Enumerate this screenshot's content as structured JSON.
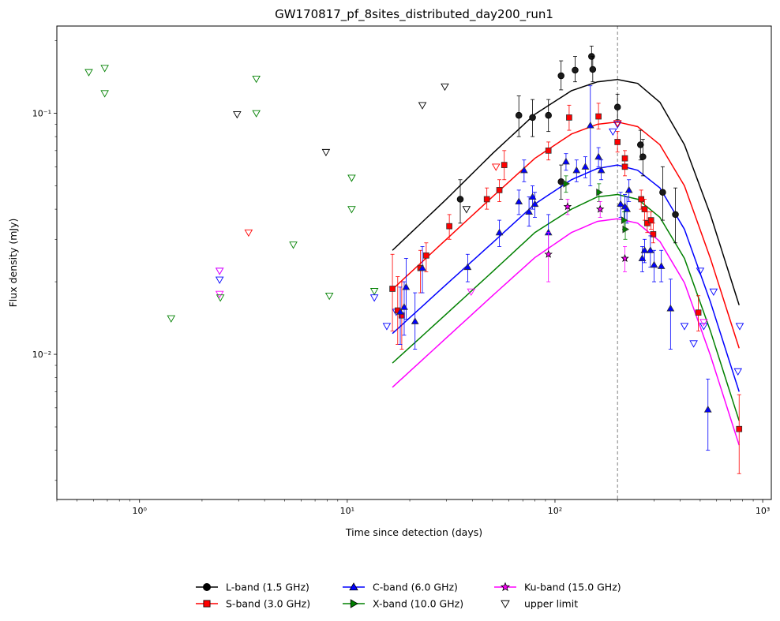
{
  "chart_data": {
    "type": "scatter",
    "title": "GW170817_pf_8sites_distributed_day200_run1",
    "xlabel": "Time since detection (days)",
    "ylabel": "Flux density (mJy)",
    "xscale": "log",
    "yscale": "log",
    "xlim": [
      0.4,
      1100
    ],
    "ylim": [
      0.0025,
      0.23
    ],
    "x_tick_labels": [
      "10⁰",
      "10¹",
      "10²",
      "10³"
    ],
    "y_tick_labels": [
      "10⁻²",
      "10⁻¹"
    ],
    "vline_x": 200,
    "legend": {
      "placement": "bottom-center, 3 columns",
      "entries": [
        {
          "label": "L-band (1.5 GHz)",
          "color": "#000000",
          "marker": "circle"
        },
        {
          "label": "S-band (3.0 GHz)",
          "color": "#ff0000",
          "marker": "square"
        },
        {
          "label": "C-band (6.0 GHz)",
          "color": "#0000ff",
          "marker": "triangle-up"
        },
        {
          "label": "X-band (10.0 GHz)",
          "color": "#008000",
          "marker": "triangle-right"
        },
        {
          "label": "Ku-band (15.0 GHz)",
          "color": "#ff00ff",
          "marker": "star"
        },
        {
          "label": "upper limit",
          "color": "#000000",
          "marker": "triangle-down-open"
        }
      ]
    },
    "model_curves": [
      {
        "band": "L",
        "color": "#000000",
        "x": [
          16.5,
          30,
          50,
          80,
          120,
          160,
          200,
          250,
          320,
          420,
          560,
          770
        ],
        "y": [
          0.027,
          0.044,
          0.068,
          0.099,
          0.124,
          0.135,
          0.138,
          0.133,
          0.111,
          0.074,
          0.038,
          0.016
        ]
      },
      {
        "band": "S",
        "color": "#ff0000",
        "x": [
          16.5,
          30,
          50,
          80,
          120,
          160,
          200,
          250,
          320,
          420,
          560,
          770
        ],
        "y": [
          0.0186,
          0.03,
          0.045,
          0.065,
          0.082,
          0.09,
          0.092,
          0.088,
          0.074,
          0.05,
          0.025,
          0.0106
        ]
      },
      {
        "band": "C",
        "color": "#0000ff",
        "x": [
          16.5,
          30,
          50,
          80,
          120,
          160,
          200,
          250,
          320,
          420,
          560,
          770
        ],
        "y": [
          0.0122,
          0.0195,
          0.029,
          0.042,
          0.053,
          0.059,
          0.061,
          0.058,
          0.049,
          0.033,
          0.0165,
          0.007
        ]
      },
      {
        "band": "X",
        "color": "#008000",
        "x": [
          16.5,
          30,
          50,
          80,
          120,
          160,
          200,
          250,
          320,
          420,
          560,
          770
        ],
        "y": [
          0.0092,
          0.0147,
          0.022,
          0.032,
          0.04,
          0.045,
          0.046,
          0.044,
          0.037,
          0.025,
          0.0125,
          0.0053
        ]
      },
      {
        "band": "Ku",
        "color": "#ff00ff",
        "x": [
          16.5,
          30,
          50,
          80,
          120,
          160,
          200,
          250,
          320,
          420,
          560,
          770
        ],
        "y": [
          0.0073,
          0.0117,
          0.0175,
          0.0252,
          0.032,
          0.0356,
          0.0365,
          0.035,
          0.0294,
          0.0198,
          0.0099,
          0.0042
        ]
      }
    ],
    "detections": [
      {
        "band": "L",
        "x": 35,
        "y": 0.044,
        "lo": 0.035,
        "hi": 0.053
      },
      {
        "band": "L",
        "x": 67,
        "y": 0.098,
        "lo": 0.08,
        "hi": 0.118
      },
      {
        "band": "L",
        "x": 78,
        "y": 0.096,
        "lo": 0.08,
        "hi": 0.114
      },
      {
        "band": "L",
        "x": 93,
        "y": 0.098,
        "lo": 0.084,
        "hi": 0.114
      },
      {
        "band": "L",
        "x": 107,
        "y": 0.143,
        "lo": 0.125,
        "hi": 0.165
      },
      {
        "band": "L",
        "x": 107,
        "y": 0.052,
        "lo": 0.044,
        "hi": 0.061
      },
      {
        "band": "L",
        "x": 125,
        "y": 0.151,
        "lo": 0.135,
        "hi": 0.172
      },
      {
        "band": "L",
        "x": 150,
        "y": 0.172,
        "lo": 0.153,
        "hi": 0.19
      },
      {
        "band": "L",
        "x": 152,
        "y": 0.152,
        "lo": 0.135,
        "hi": 0.172
      },
      {
        "band": "L",
        "x": 200,
        "y": 0.106,
        "lo": 0.094,
        "hi": 0.12
      },
      {
        "band": "L",
        "x": 258,
        "y": 0.074,
        "lo": 0.064,
        "hi": 0.085
      },
      {
        "band": "L",
        "x": 265,
        "y": 0.066,
        "lo": 0.055,
        "hi": 0.078
      },
      {
        "band": "L",
        "x": 330,
        "y": 0.047,
        "lo": 0.036,
        "hi": 0.06
      },
      {
        "band": "L",
        "x": 380,
        "y": 0.038,
        "lo": 0.029,
        "hi": 0.049
      },
      {
        "band": "S",
        "x": 16.5,
        "y": 0.0187,
        "lo": 0.0125,
        "hi": 0.026
      },
      {
        "band": "S",
        "x": 17.5,
        "y": 0.0152,
        "lo": 0.011,
        "hi": 0.021
      },
      {
        "band": "S",
        "x": 18.3,
        "y": 0.0145,
        "lo": 0.0105,
        "hi": 0.02
      },
      {
        "band": "S",
        "x": 22.5,
        "y": 0.0228,
        "lo": 0.018,
        "hi": 0.027
      },
      {
        "band": "S",
        "x": 24,
        "y": 0.0257,
        "lo": 0.022,
        "hi": 0.029
      },
      {
        "band": "S",
        "x": 31,
        "y": 0.034,
        "lo": 0.03,
        "hi": 0.038
      },
      {
        "band": "S",
        "x": 47,
        "y": 0.044,
        "lo": 0.04,
        "hi": 0.049
      },
      {
        "band": "S",
        "x": 54,
        "y": 0.048,
        "lo": 0.043,
        "hi": 0.053
      },
      {
        "band": "S",
        "x": 57,
        "y": 0.061,
        "lo": 0.053,
        "hi": 0.07
      },
      {
        "band": "S",
        "x": 93,
        "y": 0.07,
        "lo": 0.064,
        "hi": 0.076
      },
      {
        "band": "S",
        "x": 117,
        "y": 0.096,
        "lo": 0.085,
        "hi": 0.108
      },
      {
        "band": "S",
        "x": 162,
        "y": 0.097,
        "lo": 0.086,
        "hi": 0.11
      },
      {
        "band": "S",
        "x": 200,
        "y": 0.076,
        "lo": 0.069,
        "hi": 0.084
      },
      {
        "band": "S",
        "x": 217,
        "y": 0.065,
        "lo": 0.06,
        "hi": 0.07
      },
      {
        "band": "S",
        "x": 217,
        "y": 0.06,
        "lo": 0.055,
        "hi": 0.066
      },
      {
        "band": "S",
        "x": 260,
        "y": 0.044,
        "lo": 0.04,
        "hi": 0.048
      },
      {
        "band": "S",
        "x": 270,
        "y": 0.04,
        "lo": 0.036,
        "hi": 0.044
      },
      {
        "band": "S",
        "x": 278,
        "y": 0.035,
        "lo": 0.032,
        "hi": 0.039
      },
      {
        "band": "S",
        "x": 290,
        "y": 0.036,
        "lo": 0.033,
        "hi": 0.039
      },
      {
        "band": "S",
        "x": 297,
        "y": 0.0315,
        "lo": 0.029,
        "hi": 0.035
      },
      {
        "band": "S",
        "x": 490,
        "y": 0.0149,
        "lo": 0.0125,
        "hi": 0.0175
      },
      {
        "band": "S",
        "x": 770,
        "y": 0.0049,
        "lo": 0.0032,
        "hi": 0.0068
      },
      {
        "band": "C",
        "x": 18.0,
        "y": 0.015,
        "lo": 0.011,
        "hi": 0.019
      },
      {
        "band": "C",
        "x": 18.8,
        "y": 0.0157,
        "lo": 0.012,
        "hi": 0.02
      },
      {
        "band": "C",
        "x": 19.2,
        "y": 0.019,
        "lo": 0.014,
        "hi": 0.025
      },
      {
        "band": "C",
        "x": 21.2,
        "y": 0.0137,
        "lo": 0.0105,
        "hi": 0.018
      },
      {
        "band": "C",
        "x": 23.0,
        "y": 0.0228,
        "lo": 0.018,
        "hi": 0.028
      },
      {
        "band": "C",
        "x": 38,
        "y": 0.023,
        "lo": 0.02,
        "hi": 0.026
      },
      {
        "band": "C",
        "x": 54,
        "y": 0.032,
        "lo": 0.028,
        "hi": 0.036
      },
      {
        "band": "C",
        "x": 67,
        "y": 0.043,
        "lo": 0.038,
        "hi": 0.048
      },
      {
        "band": "C",
        "x": 71,
        "y": 0.058,
        "lo": 0.052,
        "hi": 0.064
      },
      {
        "band": "C",
        "x": 75,
        "y": 0.039,
        "lo": 0.034,
        "hi": 0.045
      },
      {
        "band": "C",
        "x": 78,
        "y": 0.045,
        "lo": 0.04,
        "hi": 0.05
      },
      {
        "band": "C",
        "x": 80,
        "y": 0.042,
        "lo": 0.037,
        "hi": 0.047
      },
      {
        "band": "C",
        "x": 93,
        "y": 0.032,
        "lo": 0.026,
        "hi": 0.038
      },
      {
        "band": "C",
        "x": 113,
        "y": 0.063,
        "lo": 0.058,
        "hi": 0.068
      },
      {
        "band": "C",
        "x": 127,
        "y": 0.058,
        "lo": 0.052,
        "hi": 0.064
      },
      {
        "band": "C",
        "x": 148,
        "y": 0.089,
        "lo": 0.05,
        "hi": 0.13
      },
      {
        "band": "C",
        "x": 140,
        "y": 0.06,
        "lo": 0.054,
        "hi": 0.066
      },
      {
        "band": "C",
        "x": 162,
        "y": 0.066,
        "lo": 0.06,
        "hi": 0.072
      },
      {
        "band": "C",
        "x": 167,
        "y": 0.058,
        "lo": 0.053,
        "hi": 0.064
      },
      {
        "band": "C",
        "x": 207,
        "y": 0.042,
        "lo": 0.037,
        "hi": 0.047
      },
      {
        "band": "C",
        "x": 217,
        "y": 0.041,
        "lo": 0.036,
        "hi": 0.046
      },
      {
        "band": "C",
        "x": 222,
        "y": 0.04,
        "lo": 0.035,
        "hi": 0.045
      },
      {
        "band": "C",
        "x": 227,
        "y": 0.048,
        "lo": 0.043,
        "hi": 0.053
      },
      {
        "band": "C",
        "x": 263,
        "y": 0.025,
        "lo": 0.022,
        "hi": 0.028
      },
      {
        "band": "C",
        "x": 270,
        "y": 0.027,
        "lo": 0.024,
        "hi": 0.03
      },
      {
        "band": "C",
        "x": 288,
        "y": 0.027,
        "lo": 0.023,
        "hi": 0.031
      },
      {
        "band": "C",
        "x": 300,
        "y": 0.0235,
        "lo": 0.02,
        "hi": 0.027
      },
      {
        "band": "C",
        "x": 325,
        "y": 0.0232,
        "lo": 0.02,
        "hi": 0.027
      },
      {
        "band": "C",
        "x": 360,
        "y": 0.0155,
        "lo": 0.0105,
        "hi": 0.0205
      },
      {
        "band": "C",
        "x": 545,
        "y": 0.0059,
        "lo": 0.004,
        "hi": 0.0079
      },
      {
        "band": "X",
        "x": 113,
        "y": 0.051,
        "lo": 0.047,
        "hi": 0.055
      },
      {
        "band": "X",
        "x": 163,
        "y": 0.047,
        "lo": 0.043,
        "hi": 0.051
      },
      {
        "band": "X",
        "x": 215,
        "y": 0.036,
        "lo": 0.033,
        "hi": 0.039
      },
      {
        "band": "X",
        "x": 218,
        "y": 0.033,
        "lo": 0.03,
        "hi": 0.036
      },
      {
        "band": "Ku",
        "x": 93,
        "y": 0.026,
        "lo": 0.02,
        "hi": 0.032
      },
      {
        "band": "Ku",
        "x": 115,
        "y": 0.041,
        "lo": 0.038,
        "hi": 0.044
      },
      {
        "band": "Ku",
        "x": 165,
        "y": 0.04,
        "lo": 0.037,
        "hi": 0.043
      },
      {
        "band": "Ku",
        "x": 217,
        "y": 0.025,
        "lo": 0.022,
        "hi": 0.028
      }
    ],
    "upper_limits": [
      {
        "band": "X",
        "x": 0.57,
        "y": 0.148
      },
      {
        "band": "X",
        "x": 0.68,
        "y": 0.154
      },
      {
        "band": "X",
        "x": 0.68,
        "y": 0.121
      },
      {
        "band": "X",
        "x": 1.42,
        "y": 0.0141
      },
      {
        "band": "C",
        "x": 2.43,
        "y": 0.0222
      },
      {
        "band": "C",
        "x": 2.43,
        "y": 0.0204
      },
      {
        "band": "Ku",
        "x": 2.43,
        "y": 0.0222
      },
      {
        "band": "Ku",
        "x": 2.43,
        "y": 0.0178
      },
      {
        "band": "X",
        "x": 2.45,
        "y": 0.0172
      },
      {
        "band": "L",
        "x": 2.95,
        "y": 0.099
      },
      {
        "band": "S",
        "x": 3.35,
        "y": 0.032
      },
      {
        "band": "X",
        "x": 3.65,
        "y": 0.139
      },
      {
        "band": "X",
        "x": 3.65,
        "y": 0.1
      },
      {
        "band": "X",
        "x": 5.5,
        "y": 0.0285
      },
      {
        "band": "L",
        "x": 7.9,
        "y": 0.069
      },
      {
        "band": "X",
        "x": 8.2,
        "y": 0.0175
      },
      {
        "band": "X",
        "x": 10.5,
        "y": 0.054
      },
      {
        "band": "X",
        "x": 10.5,
        "y": 0.04
      },
      {
        "band": "X",
        "x": 13.5,
        "y": 0.0183
      },
      {
        "band": "C",
        "x": 13.5,
        "y": 0.0172
      },
      {
        "band": "C",
        "x": 15.5,
        "y": 0.0131
      },
      {
        "band": "C",
        "x": 17.2,
        "y": 0.015
      },
      {
        "band": "L",
        "x": 23,
        "y": 0.108
      },
      {
        "band": "L",
        "x": 29.5,
        "y": 0.129
      },
      {
        "band": "L",
        "x": 37.5,
        "y": 0.04
      },
      {
        "band": "Ku",
        "x": 39.5,
        "y": 0.0182
      },
      {
        "band": "S",
        "x": 52,
        "y": 0.06
      },
      {
        "band": "C",
        "x": 190,
        "y": 0.084
      },
      {
        "band": "C",
        "x": 200,
        "y": 0.09
      },
      {
        "band": "S",
        "x": 200,
        "y": 0.091
      },
      {
        "band": "C",
        "x": 420,
        "y": 0.0131
      },
      {
        "band": "C",
        "x": 465,
        "y": 0.0111
      },
      {
        "band": "C",
        "x": 500,
        "y": 0.0222
      },
      {
        "band": "C",
        "x": 520,
        "y": 0.0131
      },
      {
        "band": "Ku",
        "x": 520,
        "y": 0.0136
      },
      {
        "band": "C",
        "x": 580,
        "y": 0.0182
      },
      {
        "band": "C",
        "x": 760,
        "y": 0.0085
      },
      {
        "band": "C",
        "x": 775,
        "y": 0.0131
      }
    ]
  }
}
